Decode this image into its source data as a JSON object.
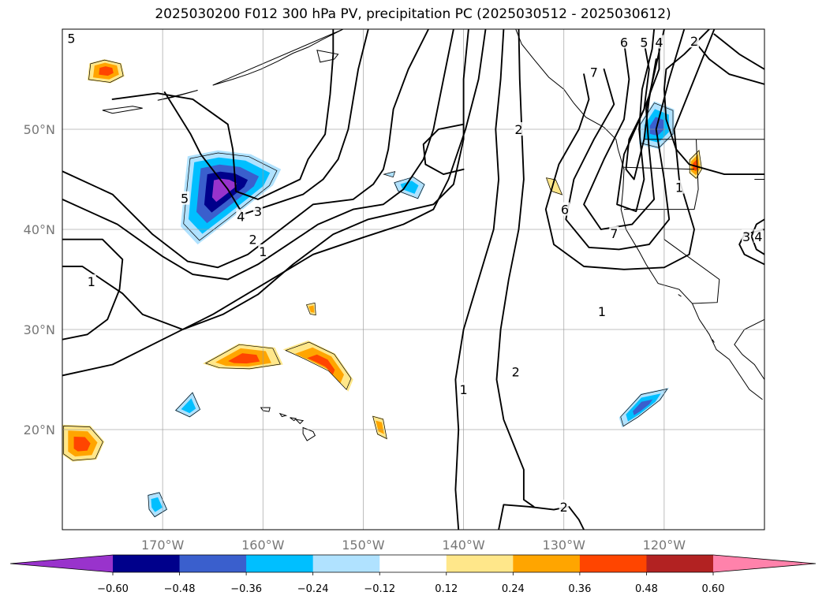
{
  "title": "2025030200 F012 300 hPa PV, precipitation PC (2025030512 - 2025030612)",
  "chart_data": {
    "type": "contour map",
    "title": "2025030200 F012 300 hPa PV, precipitation PC (2025030512 - 2025030612)",
    "lon_range": [
      -180,
      -110
    ],
    "lat_range": [
      10,
      60
    ],
    "grid": true,
    "lon_ticks": [
      {
        "value": -170,
        "label": "170°W"
      },
      {
        "value": -160,
        "label": "160°W"
      },
      {
        "value": -150,
        "label": "150°W"
      },
      {
        "value": -140,
        "label": "140°W"
      },
      {
        "value": -130,
        "label": "130°W"
      },
      {
        "value": -120,
        "label": "120°W"
      }
    ],
    "lat_ticks": [
      {
        "value": 20,
        "label": "20°N"
      },
      {
        "value": 30,
        "label": "30°N"
      },
      {
        "value": 40,
        "label": "40°N"
      },
      {
        "value": 50,
        "label": "50°N"
      }
    ],
    "pv_contour_labels": [
      {
        "text": "5",
        "lon": -179.1,
        "lat": 59.1
      },
      {
        "text": "5",
        "lon": -167.8,
        "lat": 43.1
      },
      {
        "text": "4",
        "lon": -162.2,
        "lat": 41.3
      },
      {
        "text": "3",
        "lon": -160.5,
        "lat": 41.8
      },
      {
        "text": "2",
        "lon": -161.0,
        "lat": 39.0
      },
      {
        "text": "1",
        "lon": -160.0,
        "lat": 37.8
      },
      {
        "text": "1",
        "lon": -177.1,
        "lat": 34.8
      },
      {
        "text": "2",
        "lon": -134.5,
        "lat": 50.0
      },
      {
        "text": "6",
        "lon": -124.0,
        "lat": 58.7
      },
      {
        "text": "5",
        "lon": -122.0,
        "lat": 58.7
      },
      {
        "text": "4",
        "lon": -120.5,
        "lat": 58.7
      },
      {
        "text": "2",
        "lon": -117.0,
        "lat": 58.8
      },
      {
        "text": "7",
        "lon": -127.0,
        "lat": 55.7
      },
      {
        "text": "6",
        "lon": -129.9,
        "lat": 42.0
      },
      {
        "text": "7",
        "lon": -125.0,
        "lat": 39.6
      },
      {
        "text": "1",
        "lon": -118.5,
        "lat": 44.2
      },
      {
        "text": "3",
        "lon": -111.8,
        "lat": 39.3
      },
      {
        "text": "4",
        "lon": -110.6,
        "lat": 39.3
      },
      {
        "text": "1",
        "lon": -126.2,
        "lat": 31.8
      },
      {
        "text": "1",
        "lon": -140.0,
        "lat": 24.0
      },
      {
        "text": "2",
        "lon": -134.8,
        "lat": 25.8
      },
      {
        "text": "2",
        "lon": -130.0,
        "lat": 12.3
      }
    ],
    "precip_pc_features": [
      {
        "sign": "positive",
        "peak": 0.48,
        "lon": -175.7,
        "lat": 55.6
      },
      {
        "sign": "negative",
        "peak": -0.6,
        "lon": -164.3,
        "lat": 44.8
      },
      {
        "sign": "negative",
        "peak": -0.36,
        "lon": -146.6,
        "lat": 44.0
      },
      {
        "sign": "negative",
        "peak": -0.36,
        "lon": -120.5,
        "lat": 50.8
      },
      {
        "sign": "positive",
        "peak": 0.36,
        "lon": -116.9,
        "lat": 46.2
      },
      {
        "sign": "positive",
        "peak": 0.24,
        "lon": -131.3,
        "lat": 44.5
      },
      {
        "sign": "positive",
        "peak": 0.36,
        "lon": -162.2,
        "lat": 27.4
      },
      {
        "sign": "positive",
        "peak": 0.36,
        "lon": -155.2,
        "lat": 27.4
      },
      {
        "sign": "positive",
        "peak": 0.36,
        "lon": -152.1,
        "lat": 25.6
      },
      {
        "sign": "positive",
        "peak": 0.24,
        "lon": -155.0,
        "lat": 32.0
      },
      {
        "sign": "negative",
        "peak": -0.24,
        "lon": -167.5,
        "lat": 22.5
      },
      {
        "sign": "positive",
        "peak": 0.24,
        "lon": -148.4,
        "lat": 20.1
      },
      {
        "sign": "positive",
        "peak": 0.48,
        "lon": -179.0,
        "lat": 18.9
      },
      {
        "sign": "negative",
        "peak": -0.24,
        "lon": -170.5,
        "lat": 12.5
      },
      {
        "sign": "negative",
        "peak": -0.36,
        "lon": -122.0,
        "lat": 22.6
      }
    ],
    "colorbar": {
      "extend": "both",
      "levels": [
        -0.6,
        -0.48,
        -0.36,
        -0.24,
        -0.12,
        0.12,
        0.24,
        0.36,
        0.48,
        0.6
      ],
      "tick_labels": [
        "−0.60",
        "−0.48",
        "−0.36",
        "−0.24",
        "−0.12",
        "0.12",
        "0.24",
        "0.36",
        "0.48",
        "0.60"
      ],
      "colors": [
        "#9933cc",
        "#00008b",
        "#3a5fcd",
        "#00bfff",
        "#b0e2ff",
        "#ffffff",
        "#ffe78a",
        "#ffa500",
        "#ff4500",
        "#b22222",
        "#ff82ab"
      ]
    }
  }
}
